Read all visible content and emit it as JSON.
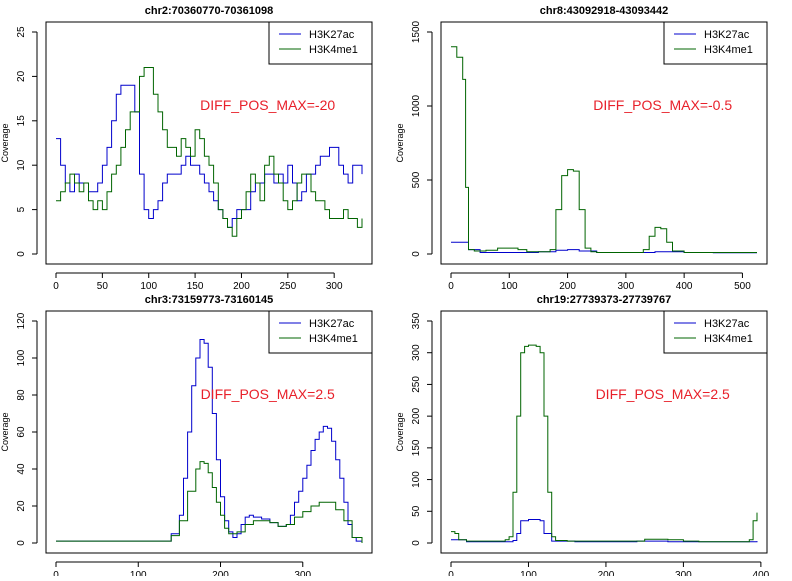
{
  "colors": {
    "h3k27ac": "#0000cc",
    "h3k4me1": "#006400",
    "annotation": "#e8202a",
    "axis": "#000000"
  },
  "chart_data": [
    {
      "type": "line",
      "title": "chr2:70360770-70361098",
      "ylabel": "Coverage",
      "xlim": [
        0,
        330
      ],
      "ylim": [
        0,
        25
      ],
      "xticks": [
        0,
        50,
        100,
        150,
        200,
        250,
        300
      ],
      "yticks": [
        0,
        5,
        10,
        15,
        20,
        25
      ],
      "legend": "top-right",
      "annotation": "DIFF_POS_MAX=-20",
      "series": [
        {
          "name": "H3K27ac",
          "color": "#0000cc",
          "x": [
            0,
            5,
            10,
            15,
            20,
            25,
            30,
            35,
            40,
            45,
            50,
            55,
            60,
            65,
            70,
            75,
            80,
            85,
            90,
            95,
            100,
            105,
            110,
            115,
            120,
            125,
            130,
            135,
            140,
            145,
            150,
            155,
            160,
            165,
            170,
            175,
            180,
            185,
            190,
            195,
            200,
            205,
            210,
            215,
            220,
            225,
            230,
            235,
            240,
            245,
            250,
            255,
            260,
            265,
            270,
            275,
            280,
            285,
            290,
            295,
            300,
            305,
            310,
            315,
            320,
            325,
            330
          ],
          "y": [
            13,
            10,
            8,
            7,
            9,
            8,
            8,
            7,
            7,
            8,
            10,
            12,
            15,
            18,
            19,
            19,
            19,
            16,
            9,
            5,
            4,
            5,
            6,
            8,
            9,
            9,
            9,
            10,
            11,
            10,
            10,
            9,
            8,
            7,
            6,
            5,
            4,
            3,
            4,
            5,
            5,
            5,
            7,
            8,
            8,
            9,
            9,
            8,
            9,
            8,
            10,
            8,
            6,
            7,
            9,
            9,
            10,
            11,
            11,
            12,
            12,
            10,
            9,
            8,
            10,
            10,
            9
          ]
        },
        {
          "name": "H3K4me1",
          "color": "#006400",
          "x": [
            0,
            5,
            10,
            15,
            20,
            25,
            30,
            35,
            40,
            45,
            50,
            55,
            60,
            65,
            70,
            75,
            80,
            85,
            90,
            95,
            100,
            105,
            110,
            115,
            120,
            125,
            130,
            135,
            140,
            145,
            150,
            155,
            160,
            165,
            170,
            175,
            180,
            185,
            190,
            195,
            200,
            205,
            210,
            215,
            220,
            225,
            230,
            235,
            240,
            245,
            250,
            255,
            260,
            265,
            270,
            275,
            280,
            285,
            290,
            295,
            300,
            305,
            310,
            315,
            320,
            325,
            330
          ],
          "y": [
            6,
            7,
            8,
            9,
            8,
            7,
            8,
            6,
            5,
            6,
            5,
            7,
            9,
            10,
            12,
            14,
            16,
            16,
            20,
            21,
            21,
            18,
            16,
            14,
            12,
            12,
            11,
            13,
            12,
            11,
            14,
            13,
            11,
            10,
            8,
            5,
            4,
            3,
            2,
            4,
            5,
            7,
            9,
            8,
            6,
            10,
            11,
            9,
            8,
            6,
            5,
            6,
            8,
            9,
            9,
            7,
            6,
            6,
            5,
            4,
            4,
            4,
            5,
            4,
            4,
            3,
            4
          ]
        }
      ]
    },
    {
      "type": "line",
      "title": "chr8:43092918-43093442",
      "ylabel": "Coverage",
      "xlim": [
        0,
        525
      ],
      "ylim": [
        0,
        1500
      ],
      "xticks": [
        0,
        100,
        200,
        300,
        400,
        500
      ],
      "yticks": [
        0,
        500,
        1000,
        1500
      ],
      "legend": "top-right",
      "annotation": "DIFF_POS_MAX=-0.5",
      "series": [
        {
          "name": "H3K27ac",
          "color": "#0000cc",
          "x": [
            0,
            20,
            30,
            50,
            100,
            150,
            180,
            200,
            220,
            250,
            300,
            350,
            400,
            450,
            500,
            525
          ],
          "y": [
            80,
            80,
            30,
            10,
            10,
            15,
            25,
            30,
            20,
            10,
            10,
            15,
            10,
            8,
            8,
            8
          ]
        },
        {
          "name": "H3K4me1",
          "color": "#006400",
          "x": [
            0,
            10,
            20,
            25,
            30,
            40,
            60,
            80,
            100,
            115,
            130,
            150,
            170,
            180,
            190,
            200,
            210,
            220,
            230,
            240,
            250,
            280,
            310,
            330,
            340,
            350,
            360,
            370,
            380,
            400,
            450,
            525
          ],
          "y": [
            1400,
            1330,
            1180,
            450,
            30,
            20,
            25,
            40,
            40,
            30,
            15,
            15,
            30,
            300,
            530,
            570,
            560,
            300,
            40,
            15,
            10,
            10,
            10,
            30,
            120,
            180,
            170,
            80,
            20,
            10,
            10,
            10
          ]
        }
      ]
    },
    {
      "type": "line",
      "title": "chr3:73159773-73160145",
      "ylabel": "Coverage",
      "xlim": [
        0,
        372
      ],
      "ylim": [
        0,
        120
      ],
      "xticks": [
        0,
        100,
        200,
        300
      ],
      "yticks": [
        0,
        20,
        40,
        60,
        80,
        100,
        120
      ],
      "legend": "top-right",
      "annotation": "DIFF_POS_MAX=2.5",
      "series": [
        {
          "name": "H3K27ac",
          "color": "#0000cc",
          "x": [
            0,
            50,
            100,
            130,
            140,
            150,
            155,
            160,
            165,
            170,
            175,
            180,
            185,
            190,
            195,
            200,
            205,
            210,
            215,
            220,
            225,
            230,
            235,
            240,
            250,
            260,
            270,
            280,
            285,
            290,
            295,
            300,
            305,
            310,
            315,
            320,
            325,
            330,
            335,
            340,
            345,
            350,
            355,
            360,
            365,
            372
          ],
          "y": [
            1,
            1,
            1,
            1,
            5,
            15,
            35,
            60,
            85,
            100,
            110,
            108,
            95,
            70,
            45,
            25,
            12,
            6,
            3,
            5,
            10,
            14,
            15,
            14,
            13,
            11,
            9,
            10,
            15,
            22,
            28,
            35,
            42,
            50,
            56,
            60,
            63,
            62,
            55,
            45,
            35,
            22,
            10,
            3,
            1,
            0
          ]
        },
        {
          "name": "H3K4me1",
          "color": "#006400",
          "x": [
            0,
            50,
            100,
            130,
            140,
            150,
            160,
            170,
            175,
            180,
            185,
            190,
            195,
            200,
            205,
            210,
            220,
            230,
            240,
            250,
            260,
            270,
            280,
            290,
            300,
            310,
            320,
            330,
            340,
            350,
            360,
            372
          ],
          "y": [
            1,
            1,
            1,
            1,
            4,
            12,
            28,
            40,
            44,
            43,
            38,
            30,
            22,
            15,
            8,
            5,
            6,
            10,
            12,
            12,
            11,
            9,
            10,
            14,
            17,
            20,
            22,
            22,
            18,
            12,
            3,
            0
          ]
        }
      ]
    },
    {
      "type": "line",
      "title": "chr19:27739373-27739767",
      "ylabel": "Coverage",
      "xlim": [
        0,
        395
      ],
      "ylim": [
        0,
        350
      ],
      "xticks": [
        0,
        100,
        200,
        300,
        400
      ],
      "yticks": [
        0,
        50,
        100,
        150,
        200,
        250,
        300,
        350
      ],
      "legend": "top-right",
      "annotation": "DIFF_POS_MAX=2.5",
      "series": [
        {
          "name": "H3K27ac",
          "color": "#0000cc",
          "x": [
            0,
            20,
            50,
            80,
            85,
            90,
            100,
            110,
            115,
            120,
            130,
            160,
            200,
            240,
            280,
            320,
            370,
            385,
            390,
            395
          ],
          "y": [
            5,
            2,
            2,
            4,
            15,
            35,
            37,
            37,
            35,
            15,
            3,
            2,
            2,
            3,
            2,
            2,
            2,
            2,
            2,
            3
          ]
        },
        {
          "name": "H3K4me1",
          "color": "#006400",
          "x": [
            0,
            5,
            10,
            20,
            50,
            70,
            75,
            80,
            85,
            90,
            95,
            100,
            110,
            115,
            120,
            125,
            130,
            135,
            150,
            200,
            250,
            280,
            300,
            320,
            350,
            380,
            385,
            390,
            395
          ],
          "y": [
            18,
            15,
            5,
            3,
            3,
            5,
            10,
            80,
            200,
            300,
            310,
            312,
            310,
            300,
            200,
            80,
            10,
            4,
            3,
            3,
            6,
            5,
            3,
            2,
            2,
            2,
            5,
            35,
            48
          ]
        }
      ]
    }
  ]
}
